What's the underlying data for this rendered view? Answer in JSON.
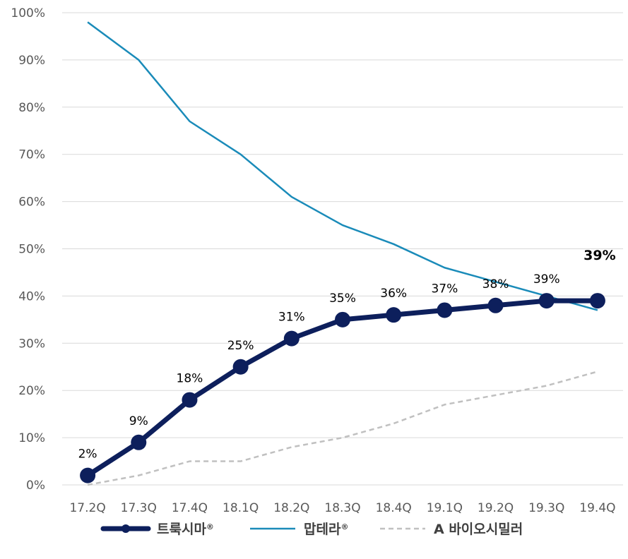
{
  "chart_data": {
    "type": "line",
    "categories": [
      "17.2Q",
      "17.3Q",
      "17.4Q",
      "18.1Q",
      "18.2Q",
      "18.3Q",
      "18.4Q",
      "19.1Q",
      "19.2Q",
      "19.3Q",
      "19.4Q"
    ],
    "y_ticks": [
      "0%",
      "10%",
      "20%",
      "30%",
      "40%",
      "50%",
      "60%",
      "70%",
      "80%",
      "90%",
      "100%"
    ],
    "ylim": [
      0,
      100
    ],
    "grid": true,
    "legend_position": "bottom",
    "series": [
      {
        "name": "트룩시마",
        "name_mark": "®",
        "color": "#0d1f5c",
        "style": "thick-solid-markers",
        "values": [
          2,
          9,
          18,
          25,
          31,
          35,
          36,
          37,
          38,
          39,
          39
        ],
        "labels": [
          "2%",
          "9%",
          "18%",
          "25%",
          "31%",
          "35%",
          "36%",
          "37%",
          "38%",
          "39%",
          "39%"
        ]
      },
      {
        "name": "맙테라",
        "name_mark": "®",
        "color": "#1a8bb9",
        "style": "thin-solid",
        "values": [
          98,
          90,
          77,
          70,
          61,
          55,
          51,
          46,
          43,
          40,
          37
        ]
      },
      {
        "name": "A 바이오시밀러",
        "color": "#c0c0c0",
        "style": "dashed",
        "values": [
          0,
          2,
          5,
          5,
          8,
          10,
          13,
          17,
          19,
          21,
          24
        ]
      }
    ]
  }
}
